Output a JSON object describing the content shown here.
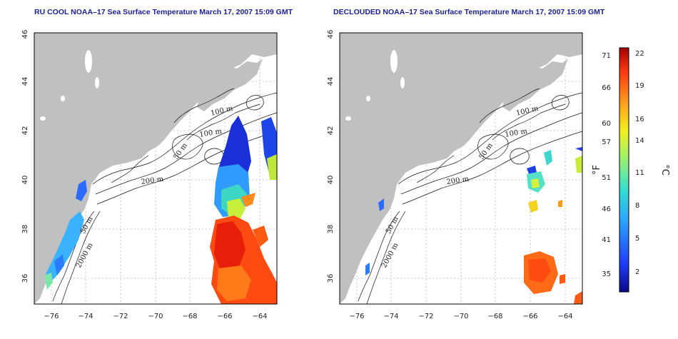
{
  "panels": [
    {
      "title": "RU COOL NOAA–17 Sea Surface Temperature March 17, 2007 15:09 GMT",
      "contour_labels": [
        "100 m",
        "100 m",
        "50 m",
        "200 m",
        "50 m",
        "2000 m"
      ]
    },
    {
      "title": "DECLOUDED NOAA–17 Sea Surface Temperature March 17, 2007 15:09 GMT",
      "contour_labels": [
        "100 m",
        "100 m",
        "50 m",
        "200 m",
        "50 m",
        "2000 m"
      ]
    }
  ],
  "axes": {
    "x_ticks": [
      "−76",
      "−74",
      "−72",
      "−70",
      "−68",
      "−66",
      "−64"
    ],
    "y_ticks": [
      "36",
      "38",
      "40",
      "42",
      "44",
      "46"
    ],
    "lon_range": [
      -77,
      -63
    ],
    "lat_range": [
      35,
      46
    ]
  },
  "colorbar": {
    "fahrenheit_ticks": [
      "71",
      "66",
      "60",
      "57",
      "51",
      "46",
      "41",
      "35"
    ],
    "celsius_ticks": [
      "22",
      "19",
      "16",
      "14",
      "11",
      "8",
      "5",
      "2"
    ],
    "fahrenheit_unit": "°F",
    "celsius_unit": "°C"
  },
  "colors": {
    "land": "#c0c0c0",
    "ocean": "#ffffff",
    "title": "#1b1f8f"
  }
}
